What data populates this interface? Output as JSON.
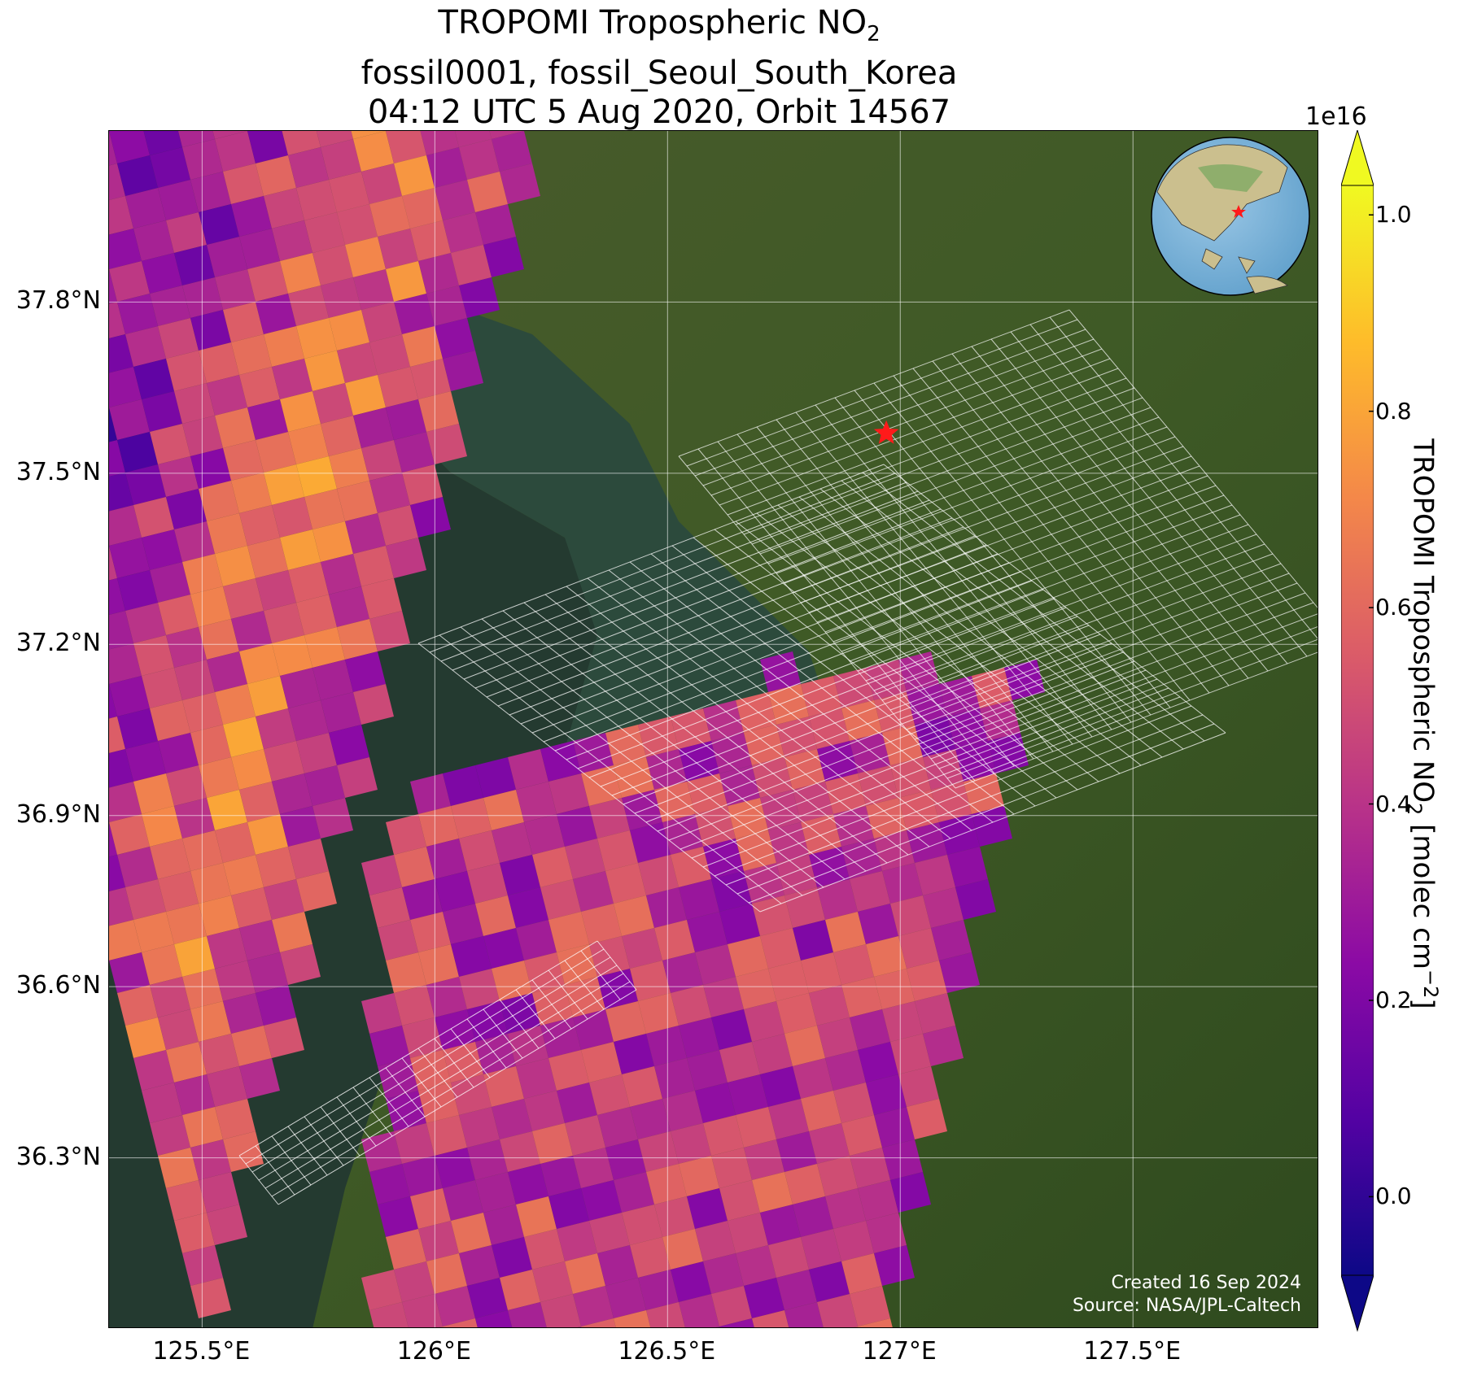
{
  "title": {
    "line1_main": "TROPOMI Tropospheric NO",
    "line1_sub": "2",
    "line2": "fossil0001, fossil_Seoul_South_Korea",
    "line3": "04:12 UTC 5 Aug 2020, Orbit 14567"
  },
  "map": {
    "lon_range": [
      125.3,
      127.9
    ],
    "lat_range": [
      36.0,
      38.1
    ],
    "lat_ticks": [
      {
        "value": 37.8,
        "label": "37.8°N"
      },
      {
        "value": 37.5,
        "label": "37.5°N"
      },
      {
        "value": 37.2,
        "label": "37.2°N"
      },
      {
        "value": 36.9,
        "label": "36.9°N"
      },
      {
        "value": 36.6,
        "label": "36.6°N"
      },
      {
        "value": 36.3,
        "label": "36.3°N"
      }
    ],
    "lon_ticks": [
      {
        "value": 125.5,
        "label": "125.5°E"
      },
      {
        "value": 126.0,
        "label": "126°E"
      },
      {
        "value": 126.5,
        "label": "126.5°E"
      },
      {
        "value": 127.0,
        "label": "127°E"
      },
      {
        "value": 127.5,
        "label": "127.5°E"
      }
    ],
    "target_marker": {
      "lon": 126.97,
      "lat": 37.57,
      "symbol": "red-star"
    },
    "basemap": "satellite imagery",
    "gridlines": true
  },
  "credit": {
    "line1": "Created 16 Sep 2024",
    "line2": "Source: NASA/JPL-Caltech"
  },
  "colorbar": {
    "exponent_label": "1e16",
    "label_main": "TROPOMI Tropospheric NO",
    "label_sub": "2",
    "label_unit_pre": " [molec cm",
    "label_unit_sup": "−2",
    "label_unit_post": "]",
    "min": -0.08,
    "max": 1.03,
    "extend": "both",
    "colormap": "plasma",
    "ticks": [
      {
        "value": 0.0,
        "label": "0.0"
      },
      {
        "value": 0.2,
        "label": "0.2"
      },
      {
        "value": 0.4,
        "label": "0.4"
      },
      {
        "value": 0.6,
        "label": "0.6"
      },
      {
        "value": 0.8,
        "label": "0.8"
      },
      {
        "value": 1.0,
        "label": "1.0"
      }
    ],
    "colors": [
      "#0d0887",
      "#5302a3",
      "#8b0aa5",
      "#b83289",
      "#db5c68",
      "#f48849",
      "#febc2a",
      "#f0f921"
    ]
  },
  "inset": {
    "name": "globe-locator",
    "marker": "red-star"
  }
}
